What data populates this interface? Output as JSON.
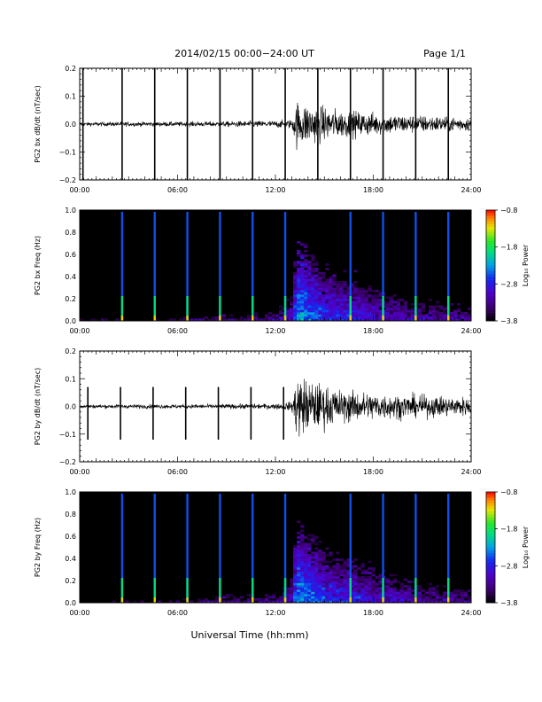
{
  "header": {
    "title": "2014/02/15  00:00−24:00 UT",
    "page": "Page 1/1"
  },
  "footer": {
    "xlabel": "Universal Time (hh:mm)"
  },
  "chart_data": [
    {
      "type": "line",
      "id": "bx-waveform",
      "ylabel": "PG2 bx dB/dt (nT/sec)",
      "ylim": [
        -0.2,
        0.2
      ],
      "yticks": [
        -0.2,
        -0.1,
        0.0,
        0.1,
        0.2
      ],
      "ytick_labels": [
        "−0.2",
        "−0.1",
        "0.0",
        "0.1",
        "0.2"
      ],
      "xlim": [
        0,
        24
      ],
      "xticks": [
        0,
        6,
        12,
        18,
        24
      ],
      "xtick_labels": [
        "00:00",
        "06:00",
        "12:00",
        "18:00",
        "24:00"
      ],
      "series": [
        {
          "envelope": [
            [
              0,
              0.008
            ],
            [
              3,
              0.01
            ],
            [
              6,
              0.01
            ],
            [
              9,
              0.012
            ],
            [
              12,
              0.015
            ],
            [
              13,
              0.02
            ],
            [
              13.3,
              0.1
            ],
            [
              14.2,
              0.085
            ],
            [
              16,
              0.06
            ],
            [
              18,
              0.05
            ],
            [
              20,
              0.04
            ],
            [
              22,
              0.035
            ],
            [
              24,
              0.03
            ]
          ],
          "calibration_pulses_hours": [
            0.2,
            2.6,
            4.6,
            6.6,
            8.6,
            10.6,
            12.6,
            14.6,
            16.6,
            18.6,
            20.6,
            22.6
          ],
          "pulse_peak": [
            0.2,
            -0.2
          ]
        }
      ],
      "grid": false
    },
    {
      "type": "heatmap",
      "id": "bx-spectrogram",
      "ylabel": "PG2 bx Freq (Hz)",
      "ylim": [
        0.0,
        1.0
      ],
      "yticks": [
        0.0,
        0.2,
        0.4,
        0.6,
        0.8,
        1.0
      ],
      "ytick_labels": [
        "0.0",
        "0.2",
        "0.4",
        "0.6",
        "0.8",
        "1.0"
      ],
      "xlim": [
        0,
        24
      ],
      "xticks": [
        0,
        6,
        12,
        18,
        24
      ],
      "xtick_labels": [
        "00:00",
        "06:00",
        "12:00",
        "18:00",
        "24:00"
      ],
      "colorbar": {
        "label": "Log₁₀ Power",
        "range": [
          -3.8,
          -0.8
        ],
        "ticks": [
          -3.8,
          -2.8,
          -1.8,
          -0.8
        ],
        "tick_labels": [
          "−3.8",
          "−2.8",
          "−1.8",
          "−0.8"
        ]
      },
      "activity": [
        [
          0,
          0.05,
          -3.6
        ],
        [
          6,
          0.08,
          -3.5
        ],
        [
          9,
          0.12,
          -3.3
        ],
        [
          12,
          0.15,
          -3.2
        ],
        [
          13,
          0.3,
          -3.0
        ],
        [
          13.3,
          0.6,
          -2.2
        ],
        [
          15,
          0.45,
          -2.6
        ],
        [
          18,
          0.35,
          -2.9
        ],
        [
          21,
          0.25,
          -3.1
        ],
        [
          24,
          0.2,
          -3.2
        ]
      ],
      "calibration_pulses_hours": [
        2.6,
        4.6,
        6.6,
        8.6,
        10.6,
        12.6,
        16.6,
        18.6,
        20.6,
        22.6
      ]
    },
    {
      "type": "line",
      "id": "by-waveform",
      "ylabel": "PG2 by dB/dt (nT/sec)",
      "ylim": [
        -0.2,
        0.2
      ],
      "yticks": [
        -0.2,
        -0.1,
        0.0,
        0.1,
        0.2
      ],
      "ytick_labels": [
        "−0.2",
        "−0.1",
        "0.0",
        "0.1",
        "0.2"
      ],
      "xlim": [
        0,
        24
      ],
      "xticks": [
        0,
        6,
        12,
        18,
        24
      ],
      "xtick_labels": [
        "00:00",
        "06:00",
        "12:00",
        "18:00",
        "24:00"
      ],
      "series": [
        {
          "envelope": [
            [
              0,
              0.008
            ],
            [
              3,
              0.009
            ],
            [
              6,
              0.009
            ],
            [
              9,
              0.01
            ],
            [
              12,
              0.012
            ],
            [
              13,
              0.02
            ],
            [
              13.3,
              0.14
            ],
            [
              14.2,
              0.11
            ],
            [
              16,
              0.07
            ],
            [
              18,
              0.06
            ],
            [
              20,
              0.05
            ],
            [
              22,
              0.045
            ],
            [
              24,
              0.04
            ]
          ],
          "calibration_pulses_hours": [
            0.5,
            2.5,
            4.5,
            6.5,
            8.5,
            10.5,
            12.5
          ],
          "pulse_peak": [
            0.07,
            -0.12
          ]
        }
      ],
      "grid": false
    },
    {
      "type": "heatmap",
      "id": "by-spectrogram",
      "ylabel": "PG2 by Freq (Hz)",
      "ylim": [
        0.0,
        1.0
      ],
      "yticks": [
        0.0,
        0.2,
        0.4,
        0.6,
        0.8,
        1.0
      ],
      "ytick_labels": [
        "0.0",
        "0.2",
        "0.4",
        "0.6",
        "0.8",
        "1.0"
      ],
      "xlim": [
        0,
        24
      ],
      "xticks": [
        0,
        6,
        12,
        18,
        24
      ],
      "xtick_labels": [
        "00:00",
        "06:00",
        "12:00",
        "18:00",
        "24:00"
      ],
      "colorbar": {
        "label": "Log₁₀ Power",
        "range": [
          -3.8,
          -0.8
        ],
        "ticks": [
          -3.8,
          -2.8,
          -1.8,
          -0.8
        ],
        "tick_labels": [
          "−3.8",
          "−2.8",
          "−1.8",
          "−0.8"
        ]
      },
      "activity": [
        [
          0,
          0.05,
          -3.6
        ],
        [
          6,
          0.08,
          -3.5
        ],
        [
          9,
          0.12,
          -3.3
        ],
        [
          12,
          0.15,
          -3.2
        ],
        [
          13,
          0.3,
          -3.0
        ],
        [
          13.3,
          0.6,
          -2.2
        ],
        [
          15,
          0.45,
          -2.6
        ],
        [
          18,
          0.35,
          -2.9
        ],
        [
          21,
          0.25,
          -3.1
        ],
        [
          24,
          0.2,
          -3.2
        ]
      ],
      "calibration_pulses_hours": [
        2.6,
        4.6,
        6.6,
        8.6,
        10.6,
        12.6,
        16.6,
        18.6,
        20.6,
        22.6
      ]
    }
  ]
}
